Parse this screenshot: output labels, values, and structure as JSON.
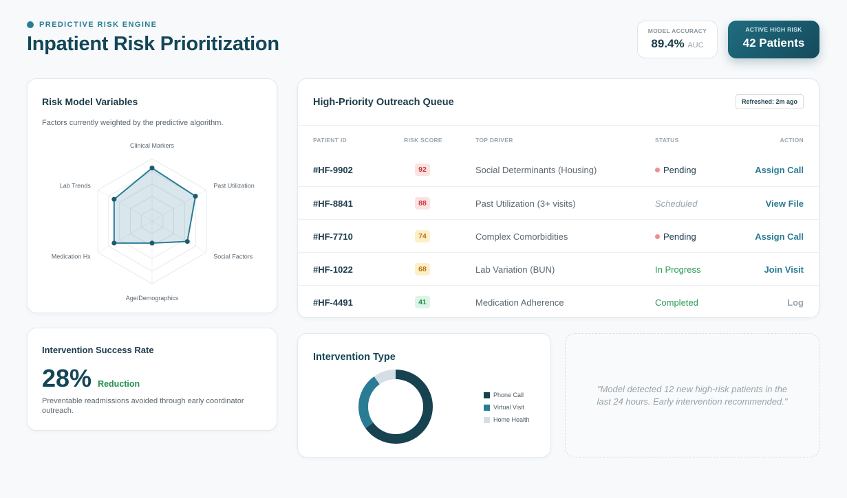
{
  "header": {
    "eyebrow": "PREDICTIVE RISK ENGINE",
    "title": "Inpatient Risk Prioritization"
  },
  "kpis": {
    "accuracy": {
      "label": "MODEL ACCURACY",
      "value": "89.4%",
      "unit": "AUC"
    },
    "high_risk": {
      "label": "ACTIVE HIGH RISK",
      "value": "42 Patients"
    }
  },
  "risk_model": {
    "title": "Risk Model Variables",
    "subtitle": "Factors currently weighted by the predictive algorithm.",
    "axes": [
      "Clinical Markers",
      "Past Utilization",
      "Social Factors",
      "Age/Demographics",
      "Medication Hx",
      "Lab Trends"
    ],
    "weights": [
      0.85,
      0.8,
      0.65,
      0.35,
      0.7,
      0.7
    ],
    "levels": 5
  },
  "success": {
    "title": "Intervention Success Rate",
    "value": "28%",
    "tag": "Reduction",
    "description": "Preventable readmissions avoided through early coordinator outreach."
  },
  "queue": {
    "title": "High-Priority Outreach Queue",
    "refreshed": "Refreshed: 2m ago",
    "headers": {
      "id": "PATIENT ID",
      "score": "RISK SCORE",
      "driver": "TOP DRIVER",
      "status": "STATUS",
      "action": "ACTION"
    },
    "rows": [
      {
        "id": "#HF-9902",
        "score": "92",
        "driver": "Social Determinants (Housing)",
        "status": "Pending",
        "action": "Assign Call"
      },
      {
        "id": "#HF-8841",
        "score": "88",
        "driver": "Past Utilization (3+ visits)",
        "status": "Scheduled",
        "action": "View File"
      },
      {
        "id": "#HF-7710",
        "score": "74",
        "driver": "Complex Comorbidities",
        "status": "Pending",
        "action": "Assign Call"
      },
      {
        "id": "#HF-1022",
        "score": "68",
        "driver": "Lab Variation (BUN)",
        "status": "In Progress",
        "action": "Join Visit"
      },
      {
        "id": "#HF-4491",
        "score": "41",
        "driver": "Medication Adherence",
        "status": "Completed",
        "action": "Log"
      }
    ]
  },
  "intervention_type": {
    "title": "Intervention Type",
    "legend": [
      "Phone Call",
      "Virtual Visit",
      "Home Health"
    ],
    "shares": [
      0.65,
      0.25,
      0.1
    ],
    "colors": [
      "#17424f",
      "#2a7c95",
      "#d5dde5"
    ]
  },
  "insight": {
    "text": "\"Model detected 12 new high-risk patients in the last 24 hours. Early intervention recommended.\""
  },
  "colors": {
    "accent": "#2a7c95",
    "title": "#134656",
    "success": "#23924f"
  }
}
